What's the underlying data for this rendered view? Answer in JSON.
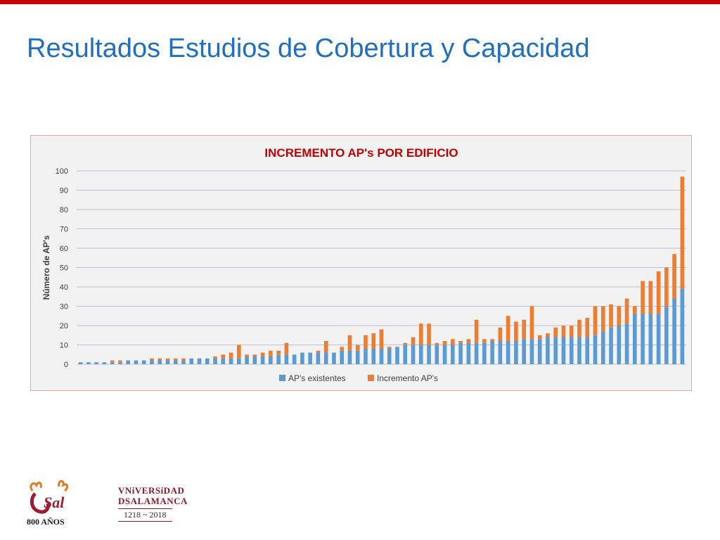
{
  "slide": {
    "title": "Resultados Estudios de Cobertura y Capacidad"
  },
  "logos": {
    "usal_text": "Sal",
    "usal_years": "800 AÑOS",
    "university_line1": "VNiVERSiDAD",
    "university_line2": "DSALAMANCA",
    "university_years": "1218 ~ 2018"
  },
  "colors": {
    "top_bar": "#c00000",
    "title": "#1f6fc0",
    "chart_title": "#c00000",
    "existing": "#5b9bd5",
    "increment": "#ed7d31"
  },
  "chart_data": {
    "type": "bar",
    "stacked": true,
    "title": "INCREMENTO AP's POR EDIFICIO",
    "xlabel": "",
    "ylabel": "Número de AP's",
    "ylim": [
      0,
      100
    ],
    "yticks": [
      0,
      10,
      20,
      30,
      40,
      50,
      60,
      70,
      80,
      90,
      100
    ],
    "grid": true,
    "legend": "bottom",
    "series": [
      {
        "name": "AP's existentes",
        "color": "#5b9bd5",
        "values": [
          1,
          1,
          1,
          1,
          1,
          1,
          2,
          2,
          2,
          2,
          2,
          2,
          2,
          2,
          3,
          3,
          3,
          3,
          3,
          3,
          3,
          4,
          4,
          4,
          4,
          5,
          5,
          5,
          6,
          6,
          6,
          6,
          6,
          7,
          7,
          7,
          8,
          8,
          8,
          8,
          9,
          10,
          10,
          10,
          10,
          10,
          10,
          10,
          11,
          11,
          11,
          11,
          12,
          12,
          12,
          12,
          13,
          13,
          13,
          14,
          14,
          14,
          14,
          14,
          14,
          15,
          17,
          19,
          20,
          21,
          26,
          26,
          26,
          26,
          30,
          34,
          39
        ]
      },
      {
        "name": "Incremento AP's",
        "color": "#ed7d31",
        "values": [
          0,
          0,
          0,
          0,
          1,
          1,
          0,
          0,
          0,
          1,
          1,
          1,
          1,
          1,
          0,
          0,
          0,
          1,
          2,
          3,
          7,
          1,
          1,
          2,
          3,
          2,
          6,
          0,
          0,
          0,
          1,
          6,
          0,
          2,
          8,
          3,
          7,
          8,
          10,
          1,
          0,
          1,
          4,
          11,
          11,
          1,
          2,
          3,
          1,
          2,
          12,
          2,
          1,
          7,
          13,
          10,
          10,
          17,
          2,
          2,
          5,
          6,
          6,
          9,
          10,
          15,
          13,
          12,
          10,
          13,
          4,
          17,
          17,
          22,
          20,
          23,
          58
        ]
      }
    ]
  }
}
